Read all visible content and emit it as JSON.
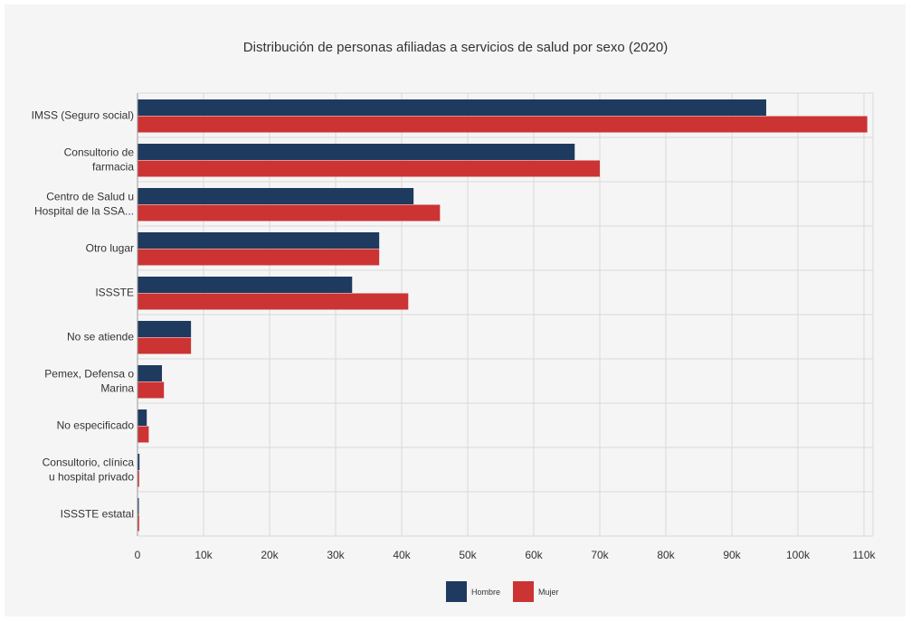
{
  "chart_data": {
    "type": "bar",
    "orientation": "horizontal",
    "title": "Distribución de personas afiliadas a servicios de salud por sexo (2020)",
    "categories": [
      [
        "IMSS (Seguro social)"
      ],
      [
        "Consultorio de",
        "farmacia"
      ],
      [
        "Centro de Salud u",
        "Hospital de la SSA..."
      ],
      [
        "Otro lugar"
      ],
      [
        "ISSSTE"
      ],
      [
        "No se atiende"
      ],
      [
        "Pemex, Defensa o",
        "Marina"
      ],
      [
        "No especificado"
      ],
      [
        "Consultorio, clínica",
        "u hospital privado"
      ],
      [
        "ISSSTE estatal"
      ]
    ],
    "series": [
      {
        "name": "Hombre",
        "color": "#1f3a5f",
        "values": [
          95200,
          66200,
          41800,
          36600,
          32500,
          8100,
          3700,
          1400,
          300,
          150
        ]
      },
      {
        "name": "Mujer",
        "color": "#cc3333",
        "values": [
          110500,
          70000,
          45800,
          36600,
          41000,
          8100,
          4000,
          1700,
          250,
          250
        ]
      }
    ],
    "xlim": [
      0,
      110000
    ],
    "xticks": [
      0,
      10000,
      20000,
      30000,
      40000,
      50000,
      60000,
      70000,
      80000,
      90000,
      100000,
      110000
    ],
    "xtick_labels": [
      "0",
      "10k",
      "20k",
      "30k",
      "40k",
      "50k",
      "60k",
      "70k",
      "80k",
      "90k",
      "100k",
      "110k"
    ],
    "grid": true,
    "legend_position": "bottom-center"
  }
}
